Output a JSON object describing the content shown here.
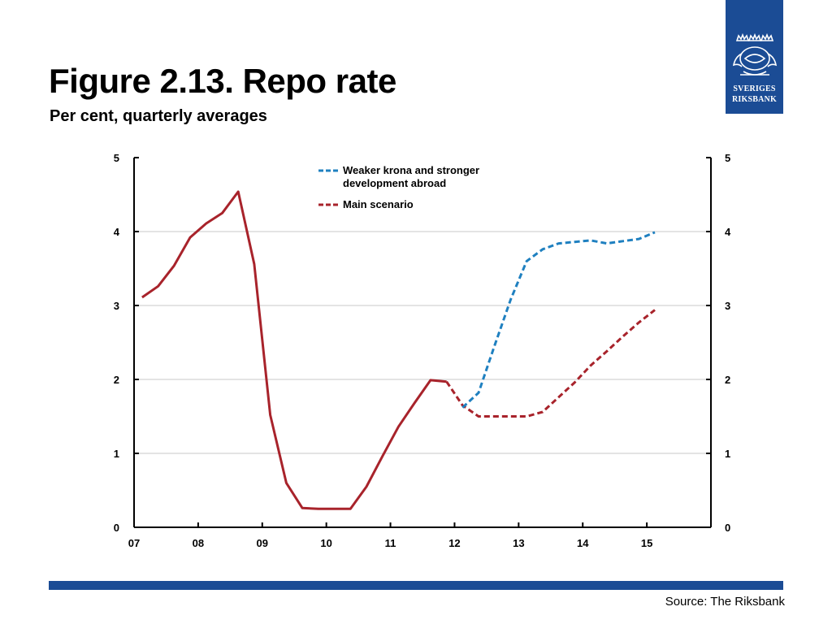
{
  "header": {
    "title": "Figure 2.13. Repo rate",
    "subtitle": "Per cent, quarterly averages"
  },
  "logo": {
    "line1": "SVERIGES",
    "line2": "RIKSBANK",
    "icon": "riksbank-crest-icon"
  },
  "footer": {
    "source": "Source: The Riksbank"
  },
  "colors": {
    "brand_blue": "#1b4c95",
    "main_red": "#a8232b",
    "weaker_blue": "#1f80c0"
  },
  "chart_data": {
    "type": "line",
    "title": "Figure 2.13. Repo rate",
    "subtitle": "Per cent, quarterly averages",
    "x_ticks": [
      "07",
      "08",
      "09",
      "10",
      "11",
      "12",
      "13",
      "14",
      "15"
    ],
    "x_range": [
      2007,
      2016
    ],
    "y_left_ticks": [
      "0",
      "1",
      "2",
      "3",
      "4",
      "5"
    ],
    "y_right_ticks": [
      "0",
      "1",
      "2",
      "3",
      "4",
      "5"
    ],
    "ylim": [
      0,
      5
    ],
    "grid": true,
    "legend_placement": "top-center",
    "series": [
      {
        "name": "Main scenario",
        "style": "solid",
        "color": "#a8232b",
        "points": [
          [
            2007.125,
            3.11
          ],
          [
            2007.375,
            3.26
          ],
          [
            2007.625,
            3.54
          ],
          [
            2007.875,
            3.92
          ],
          [
            2008.125,
            4.11
          ],
          [
            2008.375,
            4.25
          ],
          [
            2008.625,
            4.54
          ],
          [
            2008.875,
            3.56
          ],
          [
            2009.125,
            1.52
          ],
          [
            2009.375,
            0.6
          ],
          [
            2009.625,
            0.26
          ],
          [
            2009.875,
            0.25
          ],
          [
            2010.125,
            0.25
          ],
          [
            2010.375,
            0.25
          ],
          [
            2010.625,
            0.55
          ],
          [
            2010.875,
            0.96
          ],
          [
            2011.125,
            1.36
          ],
          [
            2011.375,
            1.68
          ],
          [
            2011.625,
            1.99
          ],
          [
            2011.875,
            1.97
          ]
        ]
      },
      {
        "name": "Main scenario",
        "style": "dashed",
        "color": "#a8232b",
        "points": [
          [
            2011.875,
            1.97
          ],
          [
            2012.125,
            1.65
          ],
          [
            2012.375,
            1.5
          ],
          [
            2012.625,
            1.5
          ],
          [
            2012.875,
            1.5
          ],
          [
            2013.125,
            1.5
          ],
          [
            2013.375,
            1.56
          ],
          [
            2013.625,
            1.76
          ],
          [
            2013.875,
            1.96
          ],
          [
            2014.125,
            2.19
          ],
          [
            2014.375,
            2.38
          ],
          [
            2014.625,
            2.58
          ],
          [
            2014.875,
            2.77
          ],
          [
            2015.125,
            2.94
          ]
        ]
      },
      {
        "name": "Weaker krona and stronger development abroad",
        "style": "dashed",
        "color": "#1f80c0",
        "points": [
          [
            2012.125,
            1.62
          ],
          [
            2012.375,
            1.82
          ],
          [
            2012.625,
            2.46
          ],
          [
            2012.875,
            3.08
          ],
          [
            2013.125,
            3.6
          ],
          [
            2013.375,
            3.76
          ],
          [
            2013.625,
            3.84
          ],
          [
            2013.875,
            3.86
          ],
          [
            2014.125,
            3.88
          ],
          [
            2014.375,
            3.84
          ],
          [
            2014.625,
            3.87
          ],
          [
            2014.875,
            3.9
          ],
          [
            2015.125,
            3.99
          ]
        ]
      }
    ],
    "legend": [
      {
        "label_lines": [
          "Weaker krona and stronger",
          "development abroad"
        ],
        "color": "#1f80c0"
      },
      {
        "label_lines": [
          "Main scenario"
        ],
        "color": "#a8232b"
      }
    ]
  }
}
